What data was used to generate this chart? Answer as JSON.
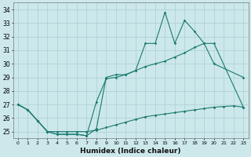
{
  "xlabel": "Humidex (Indice chaleur)",
  "xlim": [
    -0.5,
    23.5
  ],
  "ylim": [
    24.5,
    34.5
  ],
  "xticks": [
    0,
    1,
    2,
    3,
    4,
    5,
    6,
    7,
    8,
    9,
    10,
    11,
    12,
    13,
    14,
    15,
    16,
    17,
    18,
    19,
    20,
    21,
    22,
    23
  ],
  "yticks": [
    25,
    26,
    27,
    28,
    29,
    30,
    31,
    32,
    33,
    34
  ],
  "line_color": "#1a7a6e",
  "bg_color": "#cce8eb",
  "grid_color": "#aacfd4",
  "line1_x": [
    0,
    1,
    2,
    3,
    4,
    5,
    6,
    7,
    8,
    9,
    10,
    11,
    12,
    13,
    14,
    15,
    16,
    17,
    18,
    19,
    20,
    23
  ],
  "line1_y": [
    27.0,
    26.6,
    25.8,
    25.0,
    24.8,
    24.8,
    24.8,
    24.7,
    27.2,
    28.9,
    29.0,
    29.2,
    29.5,
    31.5,
    31.5,
    33.8,
    31.5,
    33.2,
    32.4,
    31.5,
    30.0,
    29.0
  ],
  "line2_x": [
    0,
    1,
    2,
    3,
    4,
    5,
    6,
    7,
    8,
    9,
    10,
    11,
    12,
    13,
    14,
    15,
    16,
    17,
    18,
    19,
    20,
    23
  ],
  "line2_y": [
    27.0,
    26.6,
    25.8,
    25.0,
    24.8,
    24.8,
    24.8,
    24.7,
    25.2,
    29.0,
    29.2,
    29.2,
    29.5,
    29.8,
    30.0,
    30.2,
    30.5,
    30.8,
    31.2,
    31.5,
    31.5,
    26.8
  ],
  "line3_x": [
    0,
    1,
    2,
    3,
    4,
    5,
    6,
    7,
    8,
    9,
    10,
    11,
    12,
    13,
    14,
    15,
    16,
    17,
    18,
    19,
    20,
    21,
    22,
    23
  ],
  "line3_y": [
    27.0,
    26.6,
    25.8,
    25.0,
    25.0,
    25.0,
    25.0,
    25.0,
    25.1,
    25.3,
    25.5,
    25.7,
    25.9,
    26.1,
    26.2,
    26.3,
    26.4,
    26.5,
    26.6,
    26.7,
    26.8,
    26.85,
    26.9,
    26.8
  ]
}
